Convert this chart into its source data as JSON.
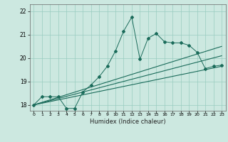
{
  "xlabel": "Humidex (Indice chaleur)",
  "bg_color": "#cce8e0",
  "grid_color": "#99ccc0",
  "line_color": "#1a6b5a",
  "xlim": [
    -0.5,
    23.5
  ],
  "ylim": [
    17.75,
    22.3
  ],
  "yticks": [
    18,
    19,
    20,
    21,
    22
  ],
  "xticks": [
    0,
    1,
    2,
    3,
    4,
    5,
    6,
    7,
    8,
    9,
    10,
    11,
    12,
    13,
    14,
    15,
    16,
    17,
    18,
    19,
    20,
    21,
    22,
    23
  ],
  "curve1_x": [
    0,
    1,
    2,
    3,
    4,
    5,
    6,
    7,
    8,
    9,
    10,
    11,
    12,
    13,
    14,
    15,
    16,
    17,
    18,
    19,
    20,
    21,
    22,
    23
  ],
  "curve1_y": [
    18.0,
    18.35,
    18.35,
    18.35,
    17.85,
    17.85,
    18.55,
    18.85,
    19.2,
    19.65,
    20.3,
    21.15,
    21.75,
    19.95,
    20.85,
    21.05,
    20.7,
    20.65,
    20.65,
    20.55,
    20.25,
    19.55,
    19.65,
    19.7
  ],
  "curve2_x": [
    0,
    23
  ],
  "curve2_y": [
    18.0,
    19.65
  ],
  "curve3_x": [
    0,
    23
  ],
  "curve3_y": [
    18.0,
    20.1
  ],
  "curve4_x": [
    0,
    23
  ],
  "curve4_y": [
    18.0,
    20.5
  ]
}
